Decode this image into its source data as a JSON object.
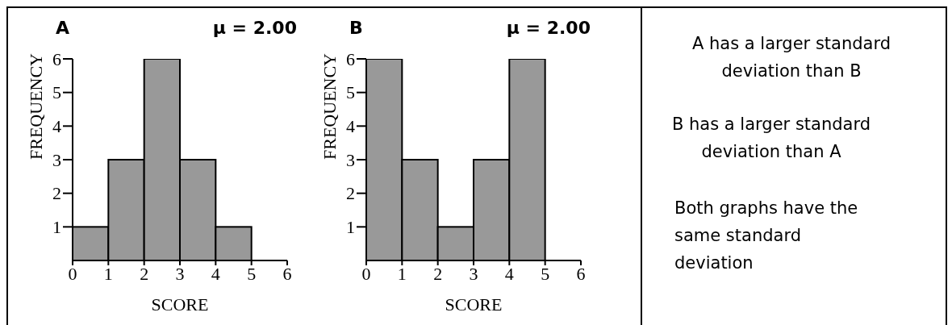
{
  "chart_data": [
    {
      "type": "histogram",
      "title": "A",
      "subtitle": "μ = 2.00",
      "bins": [
        0,
        1,
        2,
        3,
        4,
        5
      ],
      "values": [
        1,
        3,
        6,
        3,
        1
      ],
      "color": "#999999",
      "xlim": [
        0,
        6
      ],
      "xticks": [
        0,
        1,
        2,
        3,
        4,
        5,
        6
      ],
      "ylim": [
        0,
        6
      ],
      "yticks": [
        1,
        2,
        3,
        4,
        5,
        6
      ],
      "xlabel": "SCORE",
      "ylabel": "FREQUENCY"
    },
    {
      "type": "histogram",
      "title": "B",
      "subtitle": "μ = 2.00",
      "bins": [
        0,
        1,
        2,
        3,
        4,
        5
      ],
      "values": [
        6,
        3,
        1,
        3,
        6
      ],
      "color": "#999999",
      "xlim": [
        0,
        6
      ],
      "xticks": [
        0,
        1,
        2,
        3,
        4,
        5,
        6
      ],
      "ylim": [
        0,
        6
      ],
      "yticks": [
        1,
        2,
        3,
        4,
        5,
        6
      ],
      "xlabel": "SCORE",
      "ylabel": "FREQUENCY"
    },
    {
      "type": "other",
      "annotations": [
        "A has a larger standard deviation than B",
        "B has a larger standard deviation than A",
        "Both graphs have the same standard deviation"
      ]
    }
  ]
}
